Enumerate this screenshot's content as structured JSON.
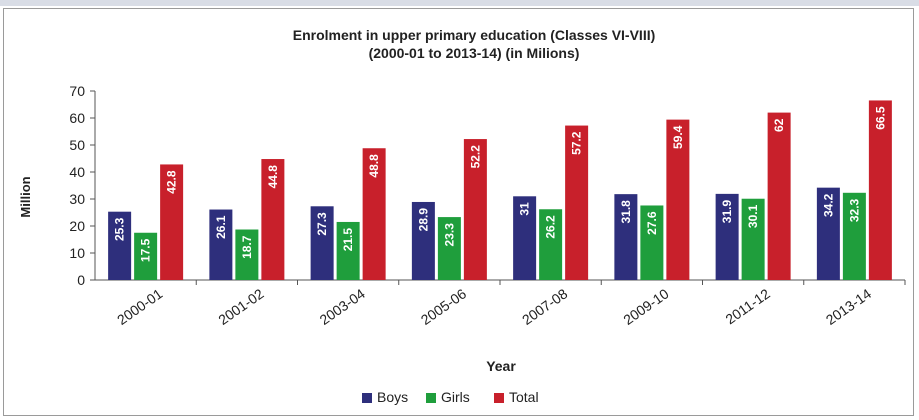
{
  "chart_data": {
    "type": "bar",
    "title": "Enrolment in upper primary education (Classes VI-VIII)",
    "subtitle": "(2000-01 to 2013-14) (in Milions)",
    "xlabel": "Year",
    "ylabel": "Million",
    "ylim": [
      0,
      70
    ],
    "yticks": [
      0,
      10,
      20,
      30,
      40,
      50,
      60,
      70
    ],
    "grid": false,
    "legend_position": "bottom-center",
    "categories": [
      "2000-01",
      "2001-02",
      "2003-04",
      "2005-06",
      "2007-08",
      "2009-10",
      "2011-12",
      "2013-14"
    ],
    "series": [
      {
        "name": "Boys",
        "color": "#2e2f7c",
        "values": [
          25.3,
          26.1,
          27.3,
          28.9,
          31,
          31.8,
          31.9,
          34.2
        ]
      },
      {
        "name": "Girls",
        "color": "#1f9e3c",
        "values": [
          17.5,
          18.7,
          21.5,
          23.3,
          26.2,
          27.6,
          30.1,
          32.3
        ]
      },
      {
        "name": "Total",
        "color": "#c8202b",
        "values": [
          42.8,
          44.8,
          48.8,
          52.2,
          57.2,
          59.4,
          62,
          66.5
        ]
      }
    ]
  }
}
